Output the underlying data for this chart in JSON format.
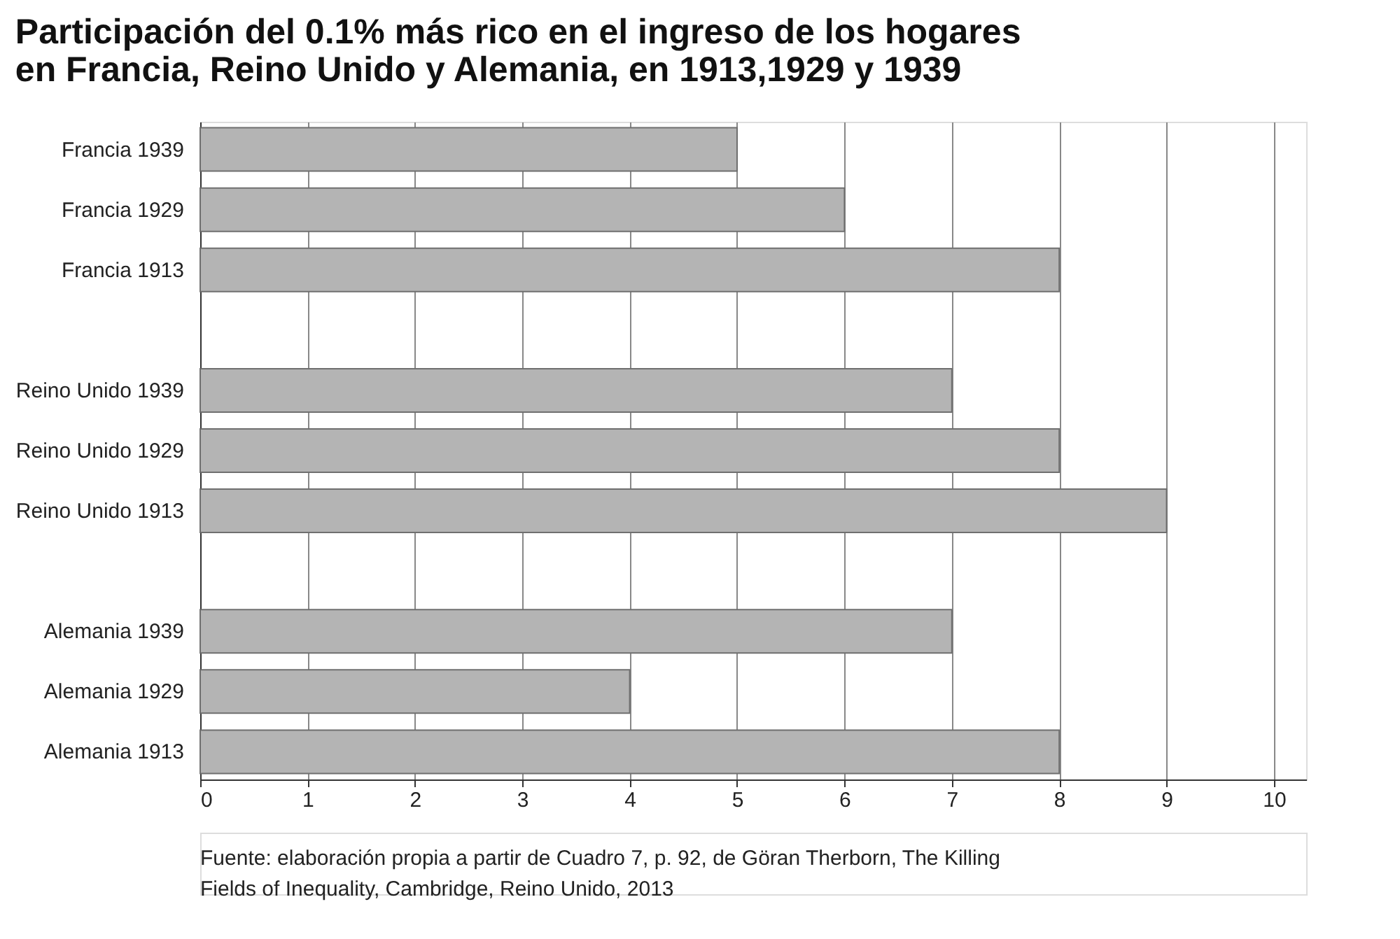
{
  "chart_data": {
    "type": "bar",
    "orientation": "horizontal",
    "title": [
      "Participación del 0.1% más rico en el ingreso de los hogares",
      "en Francia, Reino Unido y Alemania, en 1913,1929 y 1939"
    ],
    "categories": [
      "Francia 1939",
      "Francia 1929",
      "Francia 1913",
      null,
      "Reino Unido 1939",
      "Reino Unido 1929",
      "Reino Unido 1913",
      null,
      "Alemania 1939",
      "Alemania 1929",
      "Alemania 1913"
    ],
    "values": [
      5,
      6,
      8,
      null,
      7,
      8,
      9,
      null,
      7,
      4,
      8
    ],
    "color": "#b4b4b4",
    "xlim": [
      0,
      10.3
    ],
    "xticks": [
      0,
      1,
      2,
      3,
      4,
      5,
      6,
      7,
      8,
      9,
      10
    ],
    "grid": "x",
    "annotations": [
      "Fuente: elaboración propia a partir de Cuadro 7, p. 92, de Göran Therborn, The Killing",
      "Fields of Inequality, Cambridge, Reino Unido, 2013"
    ]
  }
}
